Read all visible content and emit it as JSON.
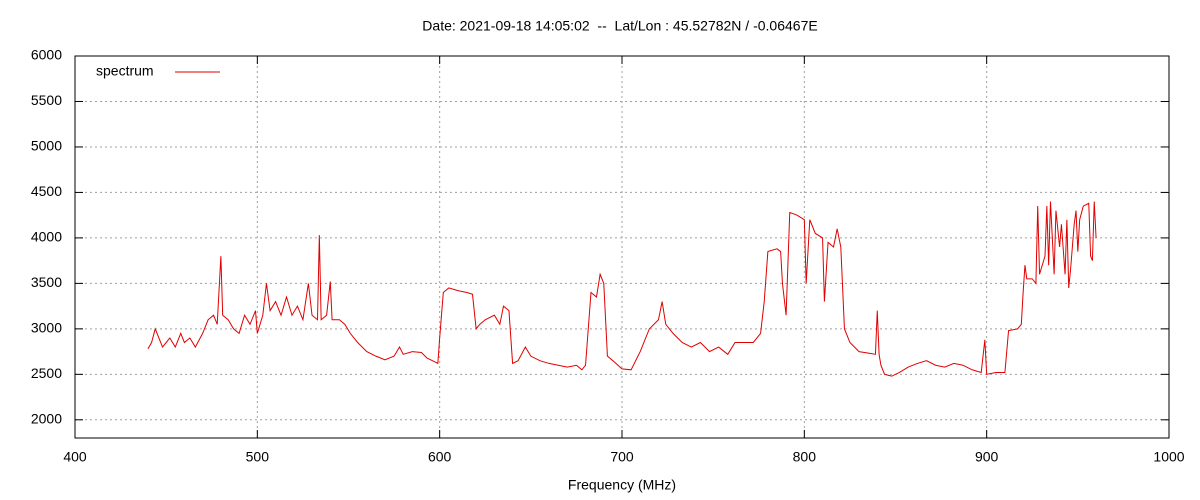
{
  "chart_data": {
    "type": "line",
    "title": "Date: 2021-09-18 14:05:02  --  Lat/Lon : 45.52782N / -0.06467E",
    "xlabel": "Frequency (MHz)",
    "legend": "top-left",
    "grid": true,
    "xlim": [
      400,
      1000
    ],
    "xticks": [
      400,
      500,
      600,
      700,
      800,
      900,
      1000
    ],
    "ylim": [
      1800,
      6000
    ],
    "yticks": [
      2000,
      2500,
      3000,
      3500,
      4000,
      4500,
      5000,
      5500,
      6000
    ],
    "x": [
      440,
      442,
      444,
      446,
      448,
      450,
      452,
      455,
      458,
      460,
      463,
      466,
      470,
      473,
      476,
      478,
      480,
      481,
      484,
      487,
      490,
      493,
      496,
      499,
      500,
      503,
      505,
      507,
      510,
      513,
      516,
      519,
      522,
      525,
      528,
      530,
      533,
      534,
      535,
      538,
      540,
      541,
      545,
      548,
      551,
      555,
      560,
      565,
      570,
      575,
      578,
      580,
      585,
      590,
      593,
      597,
      599,
      600,
      602,
      605,
      610,
      615,
      618,
      620,
      622,
      625,
      630,
      633,
      635,
      638,
      640,
      643,
      647,
      650,
      655,
      660,
      665,
      670,
      675,
      678,
      680,
      683,
      686,
      688,
      690,
      692,
      695,
      700,
      705,
      710,
      715,
      720,
      722,
      724,
      728,
      733,
      738,
      743,
      748,
      753,
      758,
      762,
      767,
      772,
      776,
      778,
      780,
      785,
      787,
      788,
      790,
      792,
      796,
      800,
      801,
      803,
      806,
      810,
      811,
      813,
      816,
      818,
      820,
      822,
      825,
      830,
      836,
      839,
      840,
      841,
      842,
      844,
      848,
      852,
      857,
      862,
      867,
      872,
      877,
      882,
      887,
      892,
      897,
      899,
      900,
      905,
      910,
      912,
      917,
      919,
      920,
      921,
      922,
      925,
      927,
      928,
      929,
      932,
      933,
      934,
      935,
      937,
      938,
      940,
      941,
      943,
      944,
      945,
      946,
      948,
      949,
      950,
      951,
      953,
      956,
      957,
      958,
      959,
      960
    ],
    "series": [
      {
        "name": "spectrum",
        "color": "#e00000",
        "values": [
          2780,
          2850,
          3000,
          2900,
          2800,
          2850,
          2900,
          2800,
          2950,
          2850,
          2900,
          2800,
          2950,
          3100,
          3150,
          3050,
          3800,
          3150,
          3100,
          3000,
          2950,
          3150,
          3050,
          3200,
          2950,
          3150,
          3500,
          3200,
          3300,
          3150,
          3350,
          3150,
          3250,
          3100,
          3500,
          3150,
          3100,
          4030,
          3100,
          3150,
          3520,
          3100,
          3100,
          3050,
          2950,
          2850,
          2750,
          2700,
          2660,
          2700,
          2800,
          2720,
          2750,
          2740,
          2680,
          2640,
          2620,
          2900,
          3400,
          3450,
          3420,
          3400,
          3380,
          3000,
          3050,
          3100,
          3150,
          3050,
          3250,
          3200,
          2620,
          2650,
          2800,
          2700,
          2650,
          2620,
          2600,
          2580,
          2600,
          2550,
          2600,
          3400,
          3350,
          3600,
          3500,
          2700,
          2650,
          2560,
          2550,
          2750,
          3000,
          3100,
          3300,
          3050,
          2950,
          2850,
          2800,
          2850,
          2750,
          2800,
          2720,
          2850,
          2850,
          2850,
          2950,
          3300,
          3850,
          3880,
          3850,
          3500,
          3150,
          4280,
          4250,
          4200,
          3500,
          4200,
          4050,
          4000,
          3300,
          3950,
          3900,
          4100,
          3900,
          3000,
          2850,
          2750,
          2730,
          2720,
          3200,
          2720,
          2600,
          2500,
          2480,
          2520,
          2580,
          2620,
          2650,
          2600,
          2580,
          2620,
          2600,
          2550,
          2520,
          2880,
          2500,
          2520,
          2520,
          2980,
          3000,
          3050,
          3400,
          3700,
          3550,
          3550,
          3500,
          4350,
          3600,
          3800,
          4350,
          3700,
          4400,
          3600,
          4300,
          3900,
          4150,
          3600,
          4200,
          3450,
          3650,
          4150,
          4300,
          3850,
          4200,
          4350,
          4380,
          3800,
          3750,
          4400,
          4000
        ]
      }
    ]
  }
}
